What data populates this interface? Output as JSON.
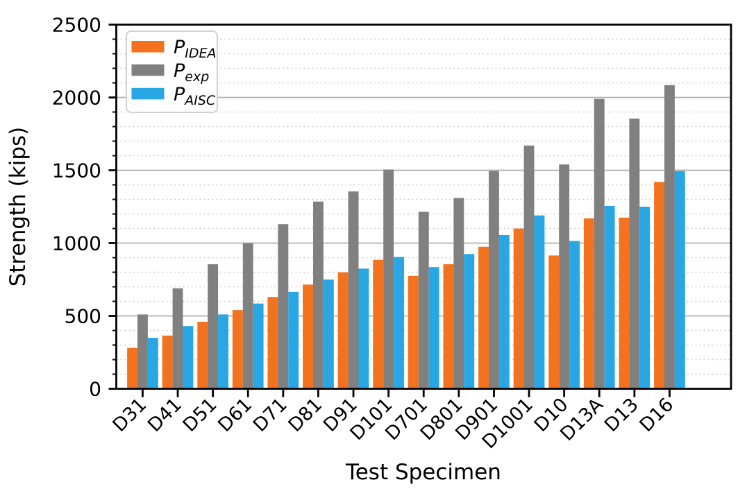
{
  "chart_data": {
    "type": "bar",
    "title": "",
    "xlabel": "Test Specimen",
    "ylabel": "Strength (kips)",
    "ylim": [
      0,
      2500
    ],
    "yticks": [
      0,
      500,
      1000,
      1500,
      2000,
      2500
    ],
    "minor_tick_step": 100,
    "grid": {
      "major": "solid gray lines every 500",
      "minor": "dotted gray lines every 100"
    },
    "legend_position": "upper left",
    "categories": [
      "D31",
      "D41",
      "D51",
      "D61",
      "D71",
      "D81",
      "D91",
      "D101",
      "D701",
      "D801",
      "D901",
      "D1001",
      "D10",
      "D13A",
      "D13",
      "D16"
    ],
    "series": [
      {
        "name": "P_IDEA",
        "label_main": "P",
        "label_sub": "IDEA",
        "color": "#F3721E",
        "values": [
          280,
          365,
          460,
          540,
          630,
          715,
          800,
          885,
          775,
          855,
          975,
          1100,
          915,
          1170,
          1175,
          1420
        ]
      },
      {
        "name": "P_exp",
        "label_main": "P",
        "label_sub": "exp",
        "color": "#808080",
        "values": [
          510,
          690,
          855,
          1000,
          1130,
          1285,
          1355,
          1505,
          1215,
          1310,
          1495,
          1670,
          1540,
          1990,
          1855,
          2085
        ]
      },
      {
        "name": "P_AISC",
        "label_main": "P",
        "label_sub": "AISC",
        "color": "#29A7E5",
        "values": [
          350,
          430,
          510,
          585,
          665,
          750,
          825,
          905,
          835,
          925,
          1055,
          1190,
          1015,
          1255,
          1250,
          1495
        ]
      }
    ]
  }
}
